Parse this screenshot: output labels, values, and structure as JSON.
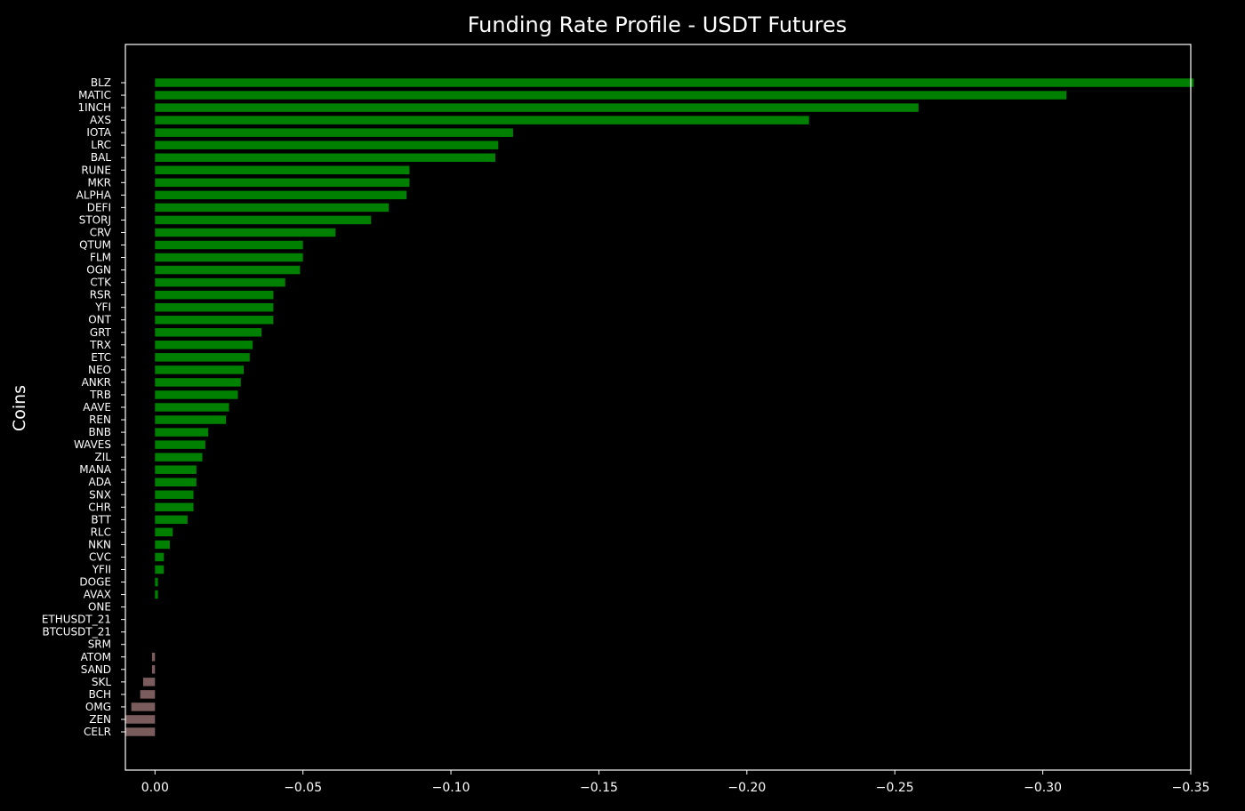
{
  "chart_data": {
    "type": "bar",
    "orientation": "horizontal",
    "title": "Funding Rate Profile - USDT Futures",
    "xlabel": "",
    "ylabel": "Coins",
    "xlim": [
      0.01,
      -0.35
    ],
    "x_inverted": true,
    "xticks": [
      0.0,
      -0.05,
      -0.1,
      -0.15,
      -0.2,
      -0.25,
      -0.3,
      -0.35
    ],
    "xtick_labels": [
      "0.00",
      "−0.05",
      "−0.10",
      "−0.15",
      "−0.20",
      "−0.25",
      "−0.30",
      "−0.35"
    ],
    "grid": false,
    "colors": {
      "negative_rate": "#008000",
      "positive_rate": "#7a5c5c",
      "background": "#000000",
      "foreground": "#ffffff"
    },
    "categories": [
      "BLZ",
      "MATIC",
      "1INCH",
      "AXS",
      "IOTA",
      "LRC",
      "BAL",
      "RUNE",
      "MKR",
      "ALPHA",
      "DEFI",
      "STORJ",
      "CRV",
      "QTUM",
      "FLM",
      "OGN",
      "CTK",
      "RSR",
      "YFI",
      "ONT",
      "GRT",
      "TRX",
      "ETC",
      "NEO",
      "ANKR",
      "TRB",
      "AAVE",
      "REN",
      "BNB",
      "WAVES",
      "ZIL",
      "MANA",
      "ADA",
      "SNX",
      "CHR",
      "BTT",
      "RLC",
      "NKN",
      "CVC",
      "YFII",
      "DOGE",
      "AVAX",
      "ONE",
      "ETHUSDT_21",
      "BTCUSDT_21",
      "SRM",
      "ATOM",
      "SAND",
      "SKL",
      "BCH",
      "OMG",
      "ZEN",
      "CELR"
    ],
    "values": [
      -0.351,
      -0.308,
      -0.258,
      -0.221,
      -0.121,
      -0.116,
      -0.115,
      -0.086,
      -0.086,
      -0.085,
      -0.079,
      -0.073,
      -0.061,
      -0.05,
      -0.05,
      -0.049,
      -0.044,
      -0.04,
      -0.04,
      -0.04,
      -0.036,
      -0.033,
      -0.032,
      -0.03,
      -0.029,
      -0.028,
      -0.025,
      -0.024,
      -0.018,
      -0.017,
      -0.016,
      -0.014,
      -0.014,
      -0.013,
      -0.013,
      -0.011,
      -0.006,
      -0.005,
      -0.003,
      -0.003,
      -0.001,
      -0.001,
      0.0,
      0.0,
      0.0,
      0.0,
      0.001,
      0.001,
      0.004,
      0.005,
      0.008,
      0.01,
      0.01
    ]
  }
}
